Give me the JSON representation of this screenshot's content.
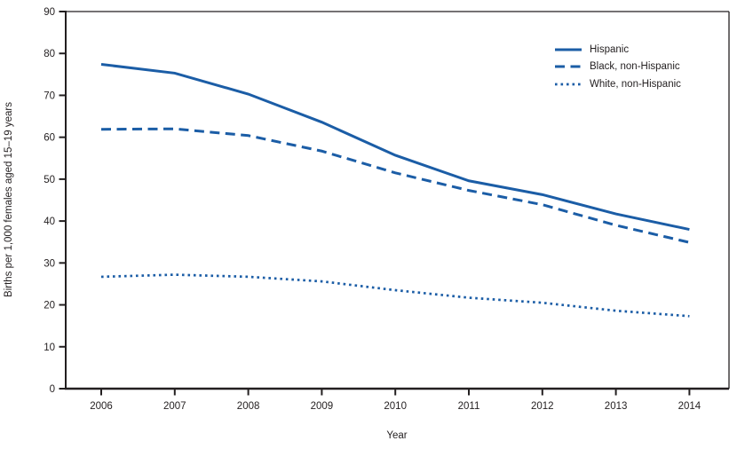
{
  "figure": {
    "background": "#ffffff",
    "axis_color": "#231f20",
    "text_color": "#231f20"
  },
  "chart_data": {
    "type": "line",
    "xlabel": "Year",
    "ylabel": "Births per 1,000 females aged 15–19 years",
    "x": [
      2006,
      2007,
      2008,
      2009,
      2010,
      2011,
      2012,
      2013,
      2014
    ],
    "x_tick_labels": [
      "2006",
      "2007",
      "2008",
      "2009",
      "2010",
      "2011",
      "2012",
      "2013",
      "2014"
    ],
    "ylim": [
      0,
      90
    ],
    "y_ticks": [
      0,
      10,
      20,
      30,
      40,
      50,
      60,
      70,
      80,
      90
    ],
    "grid": false,
    "legend_position": "top-right",
    "line_color": "#1b5da6",
    "series": [
      {
        "name": "Hispanic",
        "style": "solid",
        "values": [
          77.4,
          75.3,
          70.3,
          63.6,
          55.7,
          49.6,
          46.3,
          41.7,
          38.0
        ]
      },
      {
        "name": "Black, non-Hispanic",
        "style": "dashed",
        "values": [
          61.9,
          62.0,
          60.4,
          56.7,
          51.5,
          47.3,
          43.9,
          39.0,
          34.9
        ]
      },
      {
        "name": "White, non-Hispanic",
        "style": "dotted",
        "values": [
          26.7,
          27.2,
          26.7,
          25.6,
          23.5,
          21.7,
          20.5,
          18.6,
          17.3
        ]
      }
    ]
  }
}
